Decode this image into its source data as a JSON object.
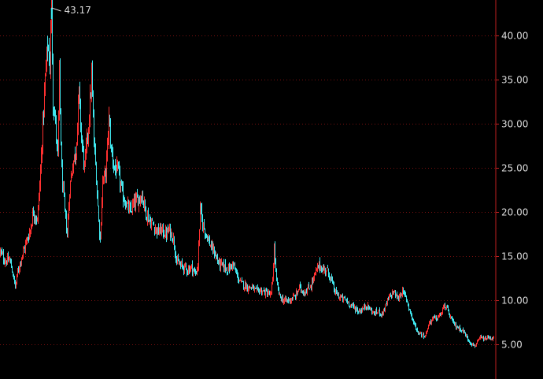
{
  "chart_data": {
    "type": "candlestick",
    "title": "",
    "xlabel": "",
    "ylabel": "",
    "y_axis_side": "right",
    "ylim": [
      3.0,
      44.5
    ],
    "yticks": [
      5,
      10,
      15,
      20,
      25,
      30,
      35,
      40
    ],
    "ytick_labels": [
      "5.00",
      "10.00",
      "15.00",
      "20.00",
      "25.00",
      "30.00",
      "35.00",
      "40.00"
    ],
    "grid": "horizontal dotted",
    "annotation": {
      "text": "43.17",
      "value": 43.17,
      "index": 65
    },
    "colors": {
      "up": "#ff3030",
      "down": "#40e8f0",
      "grid": "#7a1010",
      "axis": "#c02020",
      "text": "#dcdcdc"
    },
    "anchors": [
      [
        0,
        15.5
      ],
      [
        6,
        14.5
      ],
      [
        12,
        14.6
      ],
      [
        16,
        13.0
      ],
      [
        19,
        11.5
      ],
      [
        22,
        13.2
      ],
      [
        27,
        15.0
      ],
      [
        33,
        16.6
      ],
      [
        38,
        18.0
      ],
      [
        42,
        20.2
      ],
      [
        47,
        19.0
      ],
      [
        51,
        24.5
      ],
      [
        54,
        30.0
      ],
      [
        57,
        35.0
      ],
      [
        60,
        39.0
      ],
      [
        63,
        37.0
      ],
      [
        65,
        43.17
      ],
      [
        67,
        33.0
      ],
      [
        70,
        30.0
      ],
      [
        73,
        26.0
      ],
      [
        75,
        35.5
      ],
      [
        78,
        24.5
      ],
      [
        82,
        20.0
      ],
      [
        85,
        17.5
      ],
      [
        88,
        22.5
      ],
      [
        92,
        25.5
      ],
      [
        96,
        27.0
      ],
      [
        100,
        33.5
      ],
      [
        103,
        28.5
      ],
      [
        107,
        25.0
      ],
      [
        110,
        28.0
      ],
      [
        113,
        31.0
      ],
      [
        116,
        35.5
      ],
      [
        119,
        28.0
      ],
      [
        122,
        24.0
      ],
      [
        125,
        19.0
      ],
      [
        127,
        17.0
      ],
      [
        130,
        23.5
      ],
      [
        134,
        24.5
      ],
      [
        138,
        30.5
      ],
      [
        141,
        27.0
      ],
      [
        145,
        25.0
      ],
      [
        150,
        24.5
      ],
      [
        155,
        22.0
      ],
      [
        160,
        21.0
      ],
      [
        165,
        20.0
      ],
      [
        170,
        21.0
      ],
      [
        175,
        21.5
      ],
      [
        180,
        22.0
      ],
      [
        185,
        20.0
      ],
      [
        190,
        19.0
      ],
      [
        195,
        18.5
      ],
      [
        200,
        17.8
      ],
      [
        205,
        18.0
      ],
      [
        210,
        17.5
      ],
      [
        215,
        18.0
      ],
      [
        220,
        17.0
      ],
      [
        224,
        14.5
      ],
      [
        228,
        14.0
      ],
      [
        233,
        13.8
      ],
      [
        238,
        13.5
      ],
      [
        243,
        13.8
      ],
      [
        248,
        13.0
      ],
      [
        251,
        14.0
      ],
      [
        254,
        20.5
      ],
      [
        256,
        19.0
      ],
      [
        260,
        18.0
      ],
      [
        264,
        17.0
      ],
      [
        268,
        16.0
      ],
      [
        272,
        15.5
      ],
      [
        276,
        14.5
      ],
      [
        280,
        14.0
      ],
      [
        285,
        13.8
      ],
      [
        290,
        13.5
      ],
      [
        295,
        14.2
      ],
      [
        300,
        13.0
      ],
      [
        305,
        12.0
      ],
      [
        310,
        11.8
      ],
      [
        315,
        11.5
      ],
      [
        320,
        11.5
      ],
      [
        325,
        11.0
      ],
      [
        330,
        11.2
      ],
      [
        335,
        11.0
      ],
      [
        340,
        10.8
      ],
      [
        344,
        10.6
      ],
      [
        346,
        12.5
      ],
      [
        348,
        16.0
      ],
      [
        351,
        12.0
      ],
      [
        355,
        10.5
      ],
      [
        360,
        10.0
      ],
      [
        365,
        10.0
      ],
      [
        370,
        10.2
      ],
      [
        375,
        10.5
      ],
      [
        380,
        11.5
      ],
      [
        385,
        11.0
      ],
      [
        390,
        11.2
      ],
      [
        395,
        11.8
      ],
      [
        400,
        13.0
      ],
      [
        405,
        14.0
      ],
      [
        410,
        13.5
      ],
      [
        415,
        13.5
      ],
      [
        420,
        12.5
      ],
      [
        425,
        11.0
      ],
      [
        430,
        10.5
      ],
      [
        435,
        10.2
      ],
      [
        440,
        10.0
      ],
      [
        445,
        9.5
      ],
      [
        450,
        9.2
      ],
      [
        455,
        8.8
      ],
      [
        460,
        9.0
      ],
      [
        465,
        9.5
      ],
      [
        470,
        9.0
      ],
      [
        475,
        8.5
      ],
      [
        480,
        8.8
      ],
      [
        485,
        8.5
      ],
      [
        490,
        9.5
      ],
      [
        495,
        10.5
      ],
      [
        500,
        11.0
      ],
      [
        505,
        10.2
      ],
      [
        510,
        11.0
      ],
      [
        515,
        10.5
      ],
      [
        520,
        9.0
      ],
      [
        525,
        7.5
      ],
      [
        530,
        6.5
      ],
      [
        535,
        6.2
      ],
      [
        540,
        6.0
      ],
      [
        545,
        7.5
      ],
      [
        550,
        8.0
      ],
      [
        555,
        8.0
      ],
      [
        560,
        8.5
      ],
      [
        565,
        9.5
      ],
      [
        570,
        8.5
      ],
      [
        575,
        7.5
      ],
      [
        580,
        7.0
      ],
      [
        585,
        6.8
      ],
      [
        590,
        6.3
      ],
      [
        595,
        5.5
      ],
      [
        600,
        5.0
      ],
      [
        603,
        4.9
      ],
      [
        606,
        5.2
      ],
      [
        610,
        5.8
      ],
      [
        615,
        5.6
      ],
      [
        620,
        5.8
      ],
      [
        624,
        5.7
      ],
      [
        627,
        5.8
      ]
    ]
  }
}
